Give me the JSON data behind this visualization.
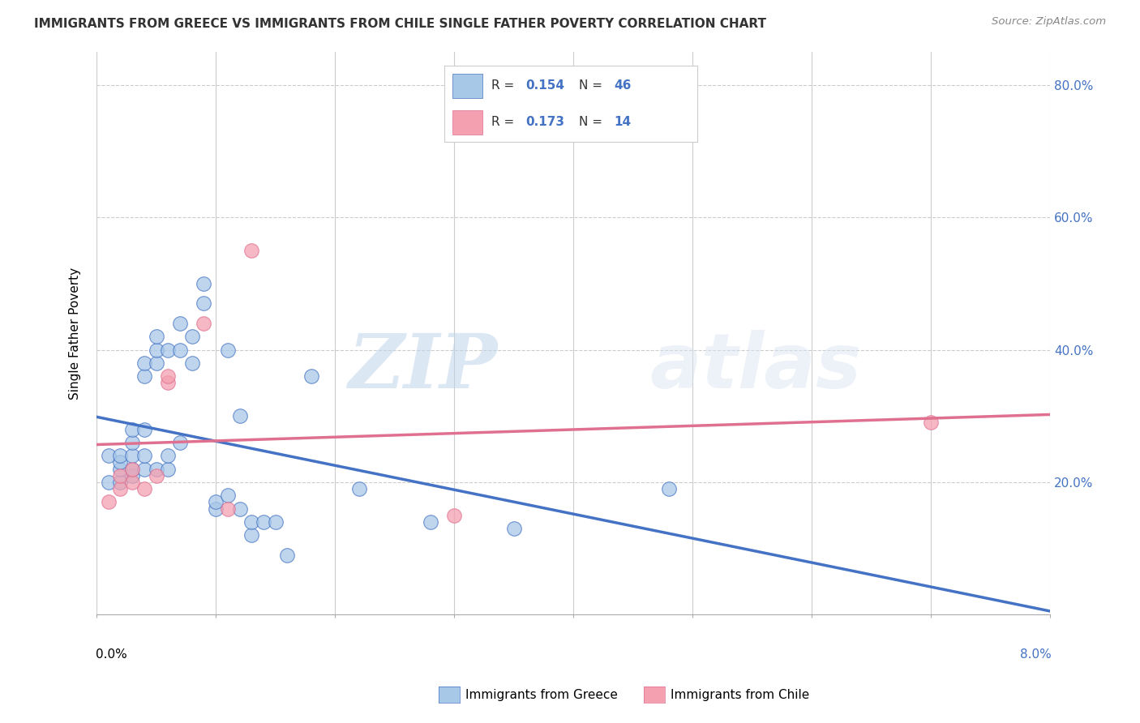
{
  "title": "IMMIGRANTS FROM GREECE VS IMMIGRANTS FROM CHILE SINGLE FATHER POVERTY CORRELATION CHART",
  "source": "Source: ZipAtlas.com",
  "ylabel": "Single Father Poverty",
  "legend_label1": "Immigrants from Greece",
  "legend_label2": "Immigrants from Chile",
  "r1": "0.154",
  "n1": "46",
  "r2": "0.173",
  "n2": "14",
  "color_greece": "#a8c8e8",
  "color_chile": "#f4a0b0",
  "color_greece_line": "#4472c4",
  "color_chile_line": "#e07090",
  "color_ytick": "#4472c4",
  "color_trend_grey": "#aaaaaa",
  "xlim": [
    0.0,
    0.08
  ],
  "ylim": [
    0.0,
    0.85
  ],
  "yticks": [
    0.2,
    0.4,
    0.6,
    0.8
  ],
  "ytick_labels": [
    "20.0%",
    "40.0%",
    "60.0%",
    "80.0%"
  ],
  "greece_x": [
    0.001,
    0.001,
    0.002,
    0.002,
    0.002,
    0.002,
    0.003,
    0.003,
    0.003,
    0.003,
    0.003,
    0.004,
    0.004,
    0.004,
    0.004,
    0.004,
    0.005,
    0.005,
    0.005,
    0.005,
    0.006,
    0.006,
    0.006,
    0.007,
    0.007,
    0.007,
    0.008,
    0.008,
    0.009,
    0.009,
    0.01,
    0.01,
    0.011,
    0.011,
    0.012,
    0.012,
    0.013,
    0.013,
    0.014,
    0.015,
    0.016,
    0.018,
    0.022,
    0.028,
    0.035,
    0.048
  ],
  "greece_y": [
    0.2,
    0.24,
    0.2,
    0.22,
    0.23,
    0.24,
    0.21,
    0.22,
    0.24,
    0.26,
    0.28,
    0.28,
    0.36,
    0.38,
    0.22,
    0.24,
    0.22,
    0.38,
    0.4,
    0.42,
    0.22,
    0.24,
    0.4,
    0.44,
    0.4,
    0.26,
    0.38,
    0.42,
    0.47,
    0.5,
    0.16,
    0.17,
    0.4,
    0.18,
    0.16,
    0.3,
    0.12,
    0.14,
    0.14,
    0.14,
    0.09,
    0.36,
    0.19,
    0.14,
    0.13,
    0.19
  ],
  "chile_x": [
    0.001,
    0.002,
    0.002,
    0.003,
    0.003,
    0.004,
    0.005,
    0.006,
    0.006,
    0.009,
    0.011,
    0.013,
    0.03,
    0.07
  ],
  "chile_y": [
    0.17,
    0.19,
    0.21,
    0.2,
    0.22,
    0.19,
    0.21,
    0.35,
    0.36,
    0.44,
    0.16,
    0.55,
    0.15,
    0.29
  ],
  "watermark_zip": "ZIP",
  "watermark_atlas": "atlas",
  "background_color": "#ffffff",
  "grid_color": "#cccccc"
}
